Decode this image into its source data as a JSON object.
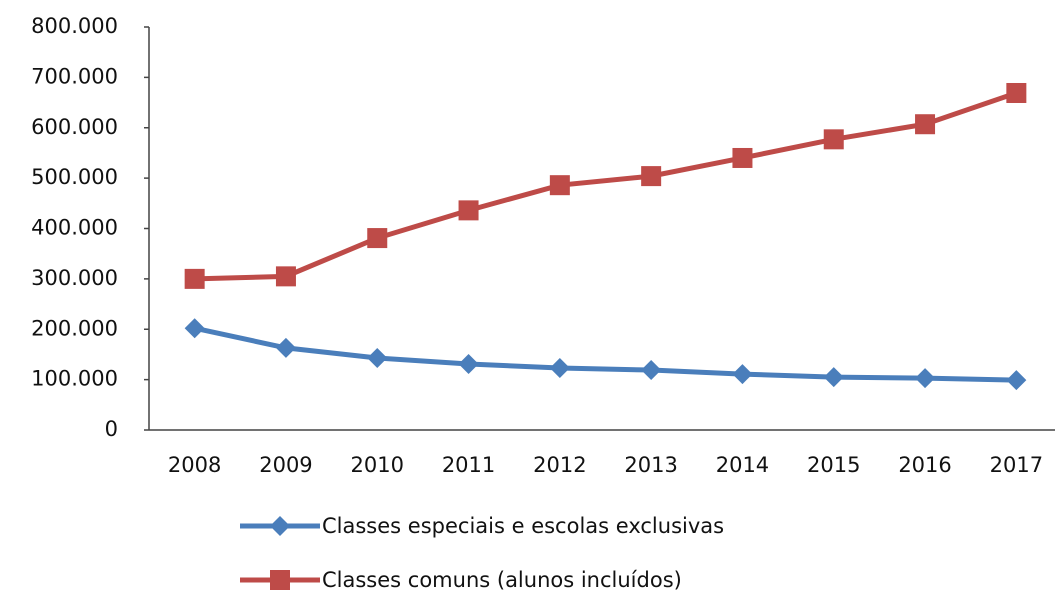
{
  "chart_data": {
    "type": "line",
    "categories": [
      "2008",
      "2009",
      "2010",
      "2011",
      "2012",
      "2013",
      "2014",
      "2015",
      "2016",
      "2017"
    ],
    "series": [
      {
        "name": "Classes especiais e escolas exclusivas",
        "color": "#4a7ebb",
        "marker": "diamond",
        "values": [
          202000,
          163000,
          143000,
          131000,
          123000,
          119000,
          111000,
          105000,
          103000,
          99000
        ]
      },
      {
        "name": "Classes comuns (alunos incluídos)",
        "color": "#be4b48",
        "marker": "square",
        "values": [
          300000,
          305000,
          381000,
          436000,
          486000,
          504000,
          540000,
          577000,
          607000,
          669000
        ]
      }
    ],
    "ylim": [
      0,
      800000
    ],
    "yticks": [
      0,
      {
        "value": 100000,
        "label": "100.000"
      },
      {
        "value": 200000,
        "label": "200.000"
      },
      {
        "value": 300000,
        "label": "300.000"
      },
      {
        "value": 400000,
        "label": "400.000"
      },
      {
        "value": 500000,
        "label": "500.000"
      },
      {
        "value": 600000,
        "label": "600.000"
      },
      {
        "value": 700000,
        "label": "700.000"
      },
      {
        "value": 800000,
        "label": "800.000"
      }
    ],
    "grid": false,
    "legend": "bottom"
  }
}
